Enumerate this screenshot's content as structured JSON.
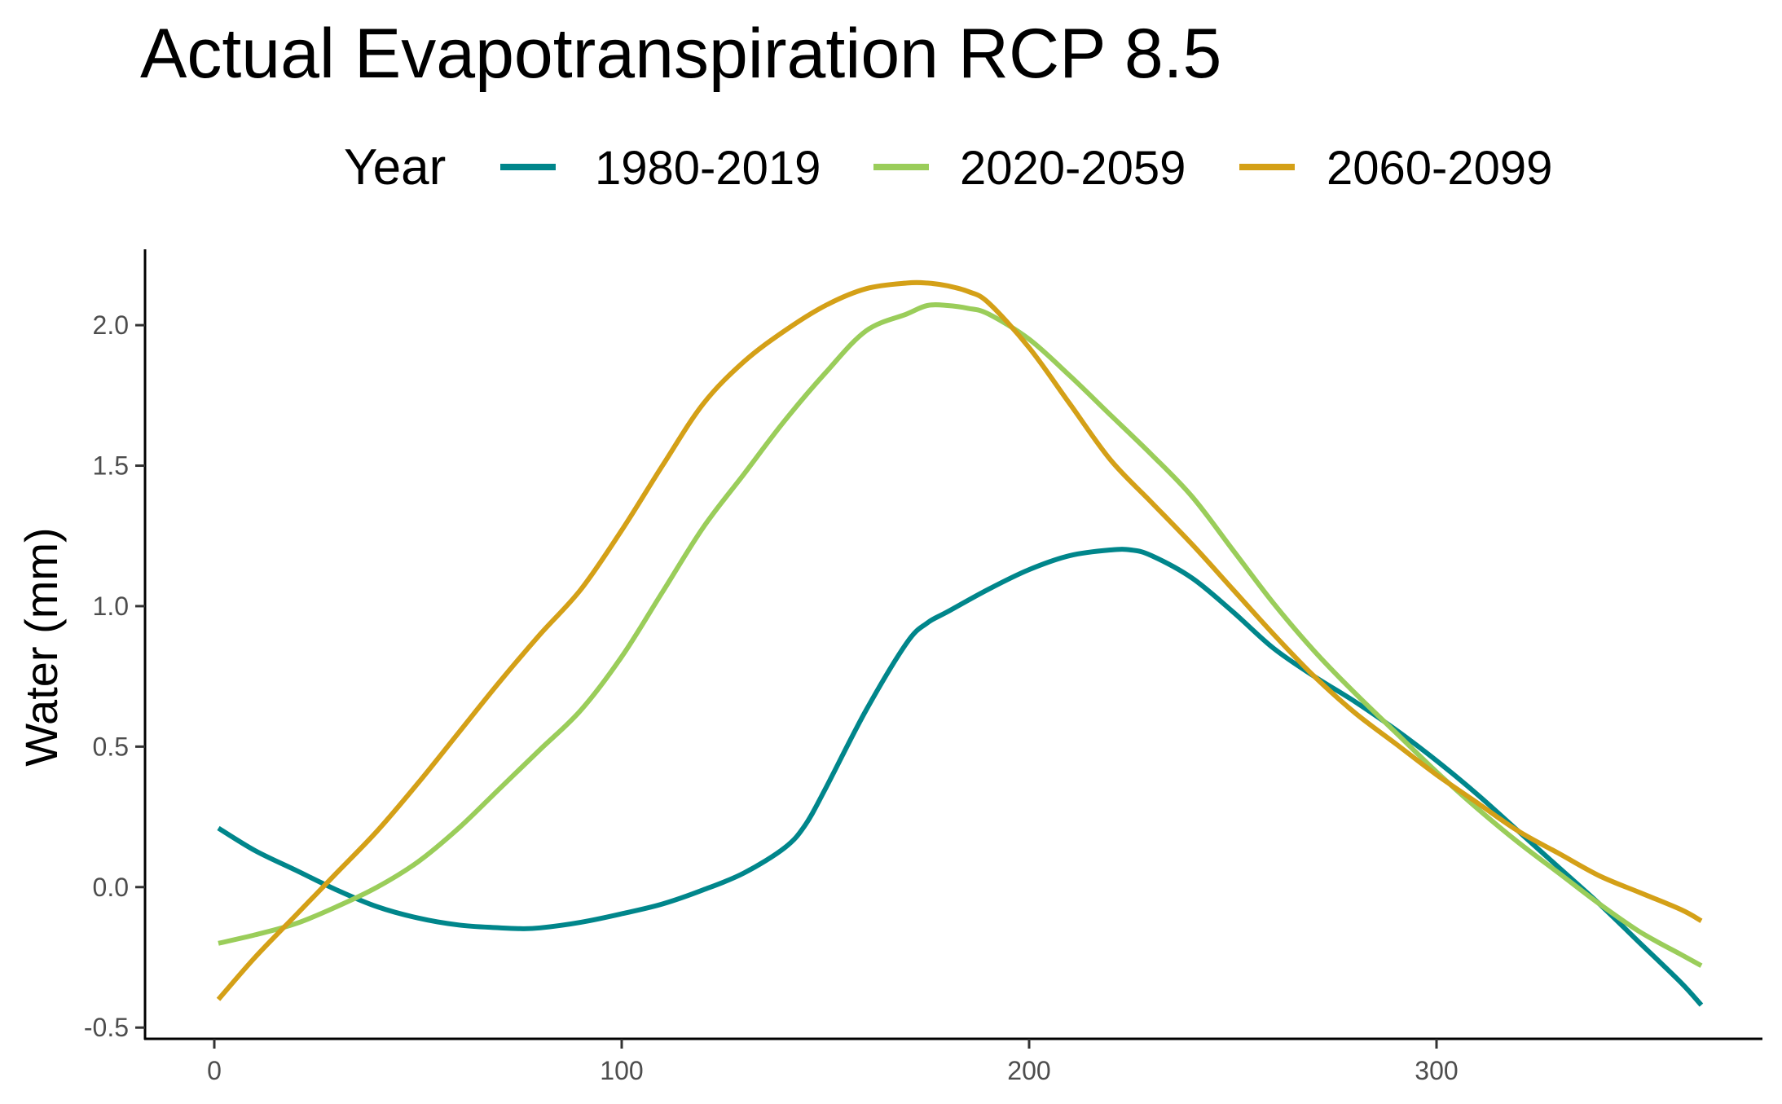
{
  "chart_data": {
    "type": "line",
    "title": "Actual Evapotranspiration RCP 8.5",
    "xlabel": "",
    "ylabel": "Water (mm)",
    "xlim": [
      -17,
      380
    ],
    "ylim": [
      -0.54,
      2.27
    ],
    "x_ticks": [
      0,
      100,
      200,
      300
    ],
    "y_ticks": [
      -0.5,
      0.0,
      0.5,
      1.0,
      1.5,
      2.0
    ],
    "y_tick_labels": [
      "-0.5",
      "0.0",
      "0.5",
      "1.0",
      "1.5",
      "2.0"
    ],
    "x_tick_labels": [
      "0",
      "100",
      "200",
      "300"
    ],
    "grid": false,
    "legend": {
      "title": "Year",
      "position": "top"
    },
    "series": [
      {
        "name": "1980-2019",
        "color": "#00868B",
        "x": [
          1,
          10,
          20,
          30,
          40,
          50,
          60,
          70,
          75,
          80,
          90,
          100,
          110,
          120,
          130,
          140,
          145,
          150,
          160,
          170,
          175,
          180,
          190,
          200,
          210,
          220,
          225,
          230,
          240,
          250,
          260,
          270,
          280,
          290,
          300,
          310,
          320,
          330,
          340,
          350,
          360,
          365
        ],
        "values": [
          0.21,
          0.13,
          0.06,
          -0.01,
          -0.07,
          -0.11,
          -0.135,
          -0.145,
          -0.148,
          -0.145,
          -0.125,
          -0.095,
          -0.06,
          -0.01,
          0.05,
          0.14,
          0.22,
          0.35,
          0.63,
          0.87,
          0.94,
          0.98,
          1.06,
          1.13,
          1.18,
          1.2,
          1.2,
          1.18,
          1.1,
          0.98,
          0.85,
          0.75,
          0.66,
          0.56,
          0.45,
          0.33,
          0.2,
          0.07,
          -0.06,
          -0.2,
          -0.34,
          -0.42
        ]
      },
      {
        "name": "2020-2059",
        "color": "#9ACD5A",
        "x": [
          1,
          10,
          20,
          30,
          40,
          50,
          60,
          70,
          80,
          90,
          100,
          110,
          120,
          130,
          140,
          150,
          160,
          170,
          175,
          180,
          185,
          190,
          200,
          210,
          220,
          230,
          240,
          250,
          260,
          270,
          280,
          290,
          300,
          310,
          320,
          330,
          340,
          350,
          360,
          365
        ],
        "values": [
          -0.2,
          -0.17,
          -0.13,
          -0.07,
          0.0,
          0.09,
          0.21,
          0.35,
          0.49,
          0.63,
          0.82,
          1.05,
          1.28,
          1.47,
          1.66,
          1.83,
          1.98,
          2.04,
          2.07,
          2.07,
          2.06,
          2.04,
          1.95,
          1.82,
          1.68,
          1.54,
          1.39,
          1.2,
          1.01,
          0.84,
          0.69,
          0.55,
          0.41,
          0.28,
          0.16,
          0.05,
          -0.06,
          -0.16,
          -0.24,
          -0.28
        ]
      },
      {
        "name": "2060-2099",
        "color": "#D4A017",
        "x": [
          1,
          10,
          20,
          30,
          40,
          50,
          60,
          70,
          80,
          90,
          100,
          110,
          120,
          130,
          140,
          150,
          160,
          170,
          175,
          180,
          185,
          190,
          200,
          210,
          220,
          230,
          240,
          250,
          260,
          270,
          280,
          290,
          300,
          310,
          320,
          330,
          340,
          350,
          360,
          365
        ],
        "values": [
          -0.4,
          -0.25,
          -0.1,
          0.05,
          0.2,
          0.37,
          0.55,
          0.73,
          0.9,
          1.06,
          1.27,
          1.5,
          1.72,
          1.87,
          1.98,
          2.07,
          2.13,
          2.15,
          2.15,
          2.14,
          2.12,
          2.08,
          1.92,
          1.72,
          1.52,
          1.37,
          1.22,
          1.06,
          0.9,
          0.75,
          0.62,
          0.51,
          0.4,
          0.3,
          0.2,
          0.12,
          0.04,
          -0.02,
          -0.08,
          -0.12
        ]
      }
    ]
  }
}
